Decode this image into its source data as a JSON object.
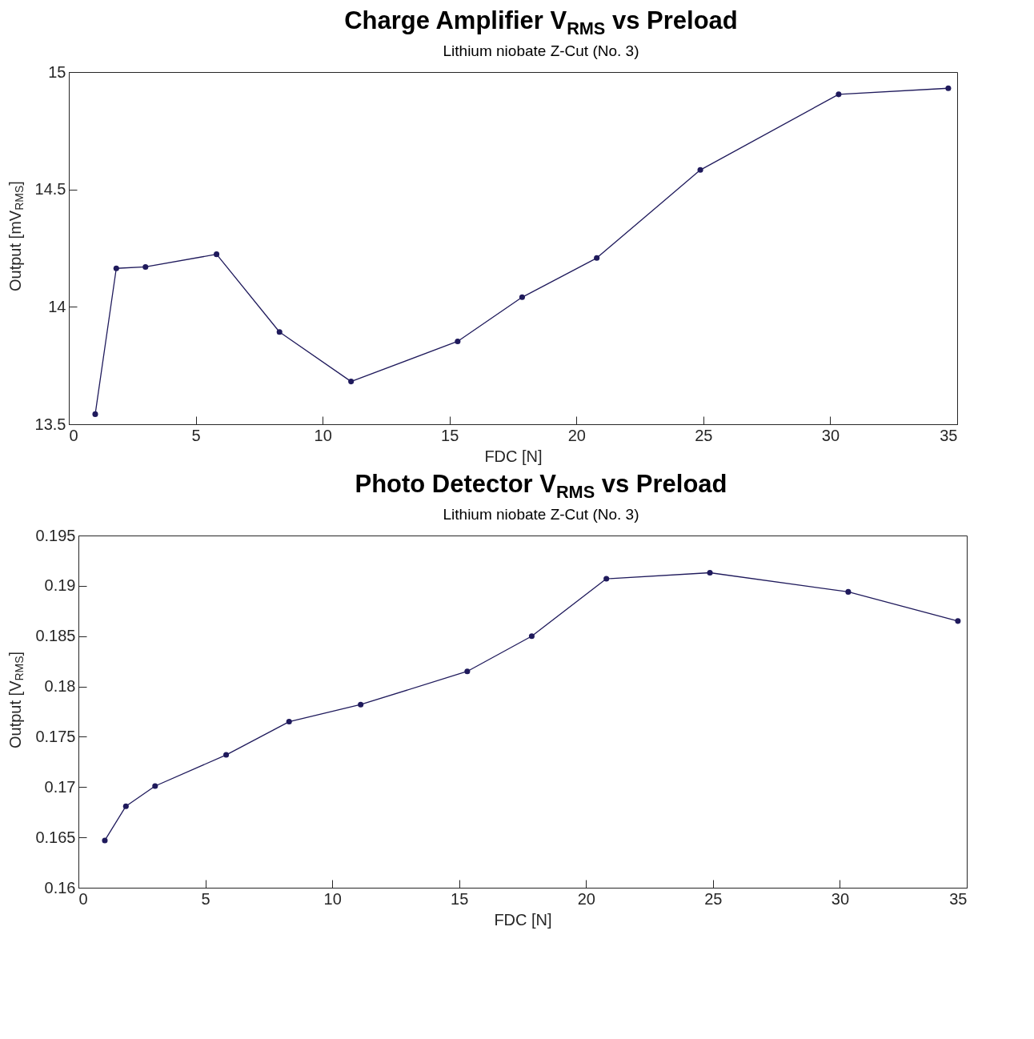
{
  "chart_data": [
    {
      "type": "line",
      "title": "Charge Amplifier V$_{RMS}$ vs Preload",
      "subtitle": "Lithium niobate Z-Cut (No. 3)",
      "xlabel": "FDC [N]",
      "ylabel": "Output [mV$_{RMS}$]",
      "x": [
        1.04,
        1.87,
        3.02,
        5.82,
        8.3,
        11.12,
        15.32,
        17.86,
        20.8,
        24.88,
        30.33,
        34.65
      ],
      "series": [
        {
          "color": "#1f1a5c",
          "values": [
            13.543,
            14.164,
            14.17,
            14.224,
            13.893,
            13.682,
            13.853,
            14.041,
            14.208,
            14.583,
            14.905,
            14.931
          ]
        }
      ],
      "xlim": [
        0,
        35
      ],
      "xticks": [
        0,
        5,
        10,
        15,
        20,
        25,
        30,
        35
      ],
      "ylim": [
        13.5,
        15
      ],
      "yticks": [
        13.5,
        14,
        14.5,
        15
      ],
      "grid": false,
      "marker": "circle",
      "line_style": "solid"
    },
    {
      "type": "line",
      "title": "Photo Detector V$_{RMS}$ vs Preload",
      "subtitle": "Lithium niobate Z-Cut (No. 3)",
      "xlabel": "FDC [N]",
      "ylabel": "Output [V$_{RMS}$]",
      "x": [
        1.04,
        1.87,
        3.02,
        5.82,
        8.3,
        11.12,
        15.32,
        17.86,
        20.8,
        24.88,
        30.33,
        34.65
      ],
      "series": [
        {
          "color": "#1f1a5c",
          "values": [
            0.1647,
            0.1681,
            0.1701,
            0.1732,
            0.1765,
            0.1782,
            0.1815,
            0.185,
            0.1907,
            0.1913,
            0.1894,
            0.1865
          ]
        }
      ],
      "xlim": [
        0,
        35
      ],
      "xticks": [
        0,
        5,
        10,
        15,
        20,
        25,
        30,
        35
      ],
      "ylim": [
        0.16,
        0.195
      ],
      "yticks": [
        0.16,
        0.165,
        0.17,
        0.175,
        0.18,
        0.185,
        0.19,
        0.195
      ],
      "grid": false,
      "marker": "circle",
      "line_style": "solid"
    }
  ]
}
